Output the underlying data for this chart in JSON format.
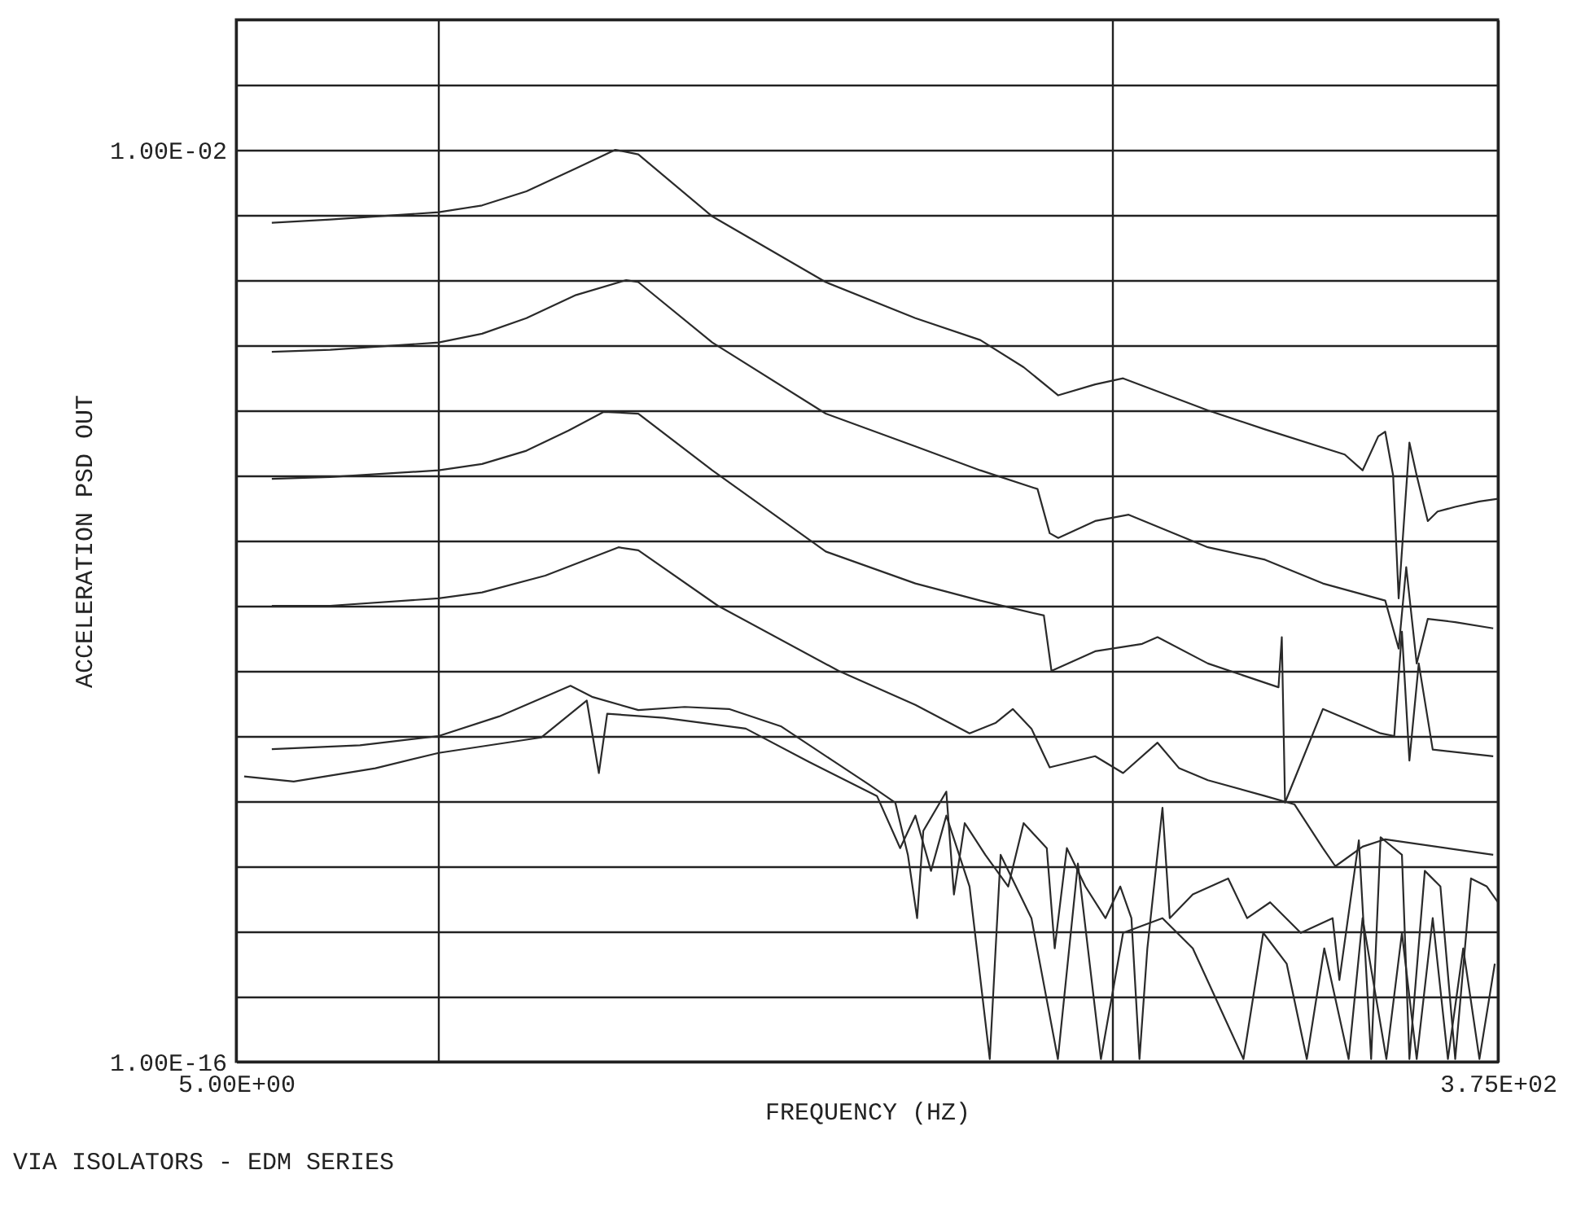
{
  "chart_data": {
    "type": "line",
    "xlabel": "FREQUENCY (HZ)",
    "ylabel": "ACCELERATION PSD OUT",
    "annotations": [
      "VIA ISOLATORS - EDM SERIES"
    ],
    "log": "xy",
    "grid": true,
    "line_style": "solid",
    "xlim": [
      5,
      375
    ],
    "xticks": [
      {
        "value": 5,
        "label": "5.00E+00"
      },
      {
        "value": 10,
        "label": null
      },
      {
        "value": 100,
        "label": null
      },
      {
        "value": 375,
        "label": "3.75E+02"
      }
    ],
    "ylim": [
      1e-16,
      1
    ],
    "yticks": [
      {
        "value": 1e-16,
        "label": "1.00E-16"
      },
      {
        "value": 1e-15,
        "label": null
      },
      {
        "value": 1e-14,
        "label": null
      },
      {
        "value": 1e-13,
        "label": null
      },
      {
        "value": 1e-12,
        "label": null
      },
      {
        "value": 1e-11,
        "label": null
      },
      {
        "value": 1e-10,
        "label": null
      },
      {
        "value": 1e-09,
        "label": null
      },
      {
        "value": 1e-08,
        "label": null
      },
      {
        "value": 1e-07,
        "label": null
      },
      {
        "value": 1e-06,
        "label": null
      },
      {
        "value": 1e-05,
        "label": null
      },
      {
        "value": 0.0001,
        "label": null
      },
      {
        "value": 0.001,
        "label": null
      },
      {
        "value": 0.01,
        "label": "1.00E-02"
      },
      {
        "value": 0.1,
        "label": null
      },
      {
        "value": 1,
        "label": null
      }
    ],
    "series": [
      {
        "color": "#2a2a2a",
        "x": [
          5.65,
          6.9,
          10,
          11.6,
          13.5,
          16.0,
          18.3,
          19.8,
          25.5,
          37.6,
          51.1,
          63.8,
          74.0,
          83.3,
          94.5,
          104,
          139,
          169,
          222,
          236,
          249,
          255,
          262,
          267,
          277,
          284,
          295,
          305,
          324,
          352,
          375
        ],
        "values": [
          0.00076,
          0.00085,
          0.0011,
          0.0014,
          0.0023,
          0.0052,
          0.01,
          0.0085,
          0.00095,
          9.3e-05,
          2.6e-05,
          1.2e-05,
          4.6e-06,
          1.7e-06,
          2.5e-06,
          3.1e-06,
          1e-06,
          5.1e-07,
          2.1e-07,
          1.2e-07,
          4e-07,
          4.7e-07,
          1e-07,
          1.3e-09,
          3.2e-07,
          1e-07,
          2e-08,
          2.8e-08,
          3.3e-08,
          4e-08,
          4.4e-08
        ]
      },
      {
        "color": "#2a2a2a",
        "x": [
          5.65,
          6.9,
          10,
          11.6,
          13.5,
          16.0,
          19.0,
          19.8,
          25.5,
          37.6,
          51.1,
          63.8,
          77.6,
          80.9,
          83.3,
          94.5,
          106,
          139,
          169,
          206,
          255,
          267,
          274,
          284,
          295,
          324,
          369
        ],
        "values": [
          7.9e-06,
          8.5e-06,
          1.1e-05,
          1.5e-05,
          2.6e-05,
          5.9e-05,
          0.0001,
          9.3e-05,
          1.1e-05,
          8.9e-07,
          2.8e-07,
          1.2e-07,
          6.2e-08,
          1.3e-08,
          1.1e-08,
          2e-08,
          2.5e-08,
          7.9e-09,
          5.1e-09,
          2.2e-09,
          1.2e-09,
          2.2e-10,
          3.9e-09,
          1.3e-10,
          6.3e-10,
          5.6e-10,
          4.5e-10
        ]
      },
      {
        "color": "#2a2a2a",
        "x": [
          5.65,
          6.9,
          10,
          11.6,
          13.5,
          15.6,
          17.6,
          19.8,
          25.5,
          37.6,
          51.1,
          63.8,
          79.3,
          81.4,
          94.5,
          111,
          117,
          139,
          177,
          179,
          181,
          206,
          251,
          263,
          270,
          277,
          286,
          300,
          369
        ],
        "values": [
          8.9e-08,
          9.5e-08,
          1.2e-07,
          1.5e-07,
          2.4e-07,
          4.9e-07,
          9.5e-07,
          8.9e-07,
          1.2e-07,
          6.8e-09,
          2.2e-09,
          1.2e-09,
          7.1e-10,
          1e-10,
          2e-10,
          2.6e-10,
          3.3e-10,
          1.3e-10,
          5.6e-11,
          3.3e-10,
          9.5e-13,
          2.6e-11,
          1.1e-11,
          1e-11,
          4e-10,
          4.2e-12,
          1.3e-10,
          6.2e-12,
          4.9e-12
        ]
      },
      {
        "color": "#2a2a2a",
        "x": [
          5.65,
          6.9,
          10,
          11.6,
          14.4,
          18.5,
          19.8,
          26.0,
          39.3,
          51.1,
          61.5,
          67.3,
          71.3,
          76.0,
          80.9,
          94.5,
          104,
          117,
          126,
          139,
          169,
          187,
          206,
          215,
          236,
          255,
          369
        ],
        "values": [
          1e-09,
          1e-09,
          1.3e-09,
          1.6e-09,
          2.9e-09,
          7.9e-09,
          7.1e-09,
          1e-09,
          1e-10,
          3e-11,
          1.1e-11,
          1.6e-11,
          2.6e-11,
          1.3e-11,
          3.3e-12,
          4.9e-12,
          2.7e-12,
          7.9e-12,
          3.2e-12,
          2.1e-12,
          1.2e-12,
          8.9e-13,
          1.9e-13,
          1e-13,
          2e-13,
          2.6e-13,
          1.5e-13
        ]
      },
      {
        "color": "#2a2a2a",
        "x": [
          5.65,
          7.64,
          10,
          12.3,
          15.7,
          16.9,
          19.8,
          23.2,
          27.0,
          32.3,
          38.5,
          43.6,
          47.7,
          49.8,
          51.4,
          52.5,
          56.8,
          58.3,
          60.5,
          64.9,
          70.2,
          74.0,
          80.1,
          82.3,
          85.8,
          91.4,
          97.9,
          103,
          107,
          110,
          113,
          119,
          122,
          132,
          149,
          159,
          172,
          191,
          213,
          218,
          233,
          243,
          251,
          270,
          277,
          292,
          308,
          324,
          342,
          361,
          375
        ],
        "values": [
          6.3e-12,
          7.2e-12,
          1e-11,
          2e-11,
          5.9e-11,
          4e-11,
          2.5e-11,
          2.8e-11,
          2.6e-11,
          1.4e-11,
          4.2e-12,
          1.8e-12,
          9.5e-13,
          1.5e-13,
          1.6e-14,
          3.5e-13,
          1.4e-12,
          3.7e-14,
          4.6e-13,
          1.5e-13,
          4.9e-14,
          4.6e-13,
          1.9e-13,
          5.5e-15,
          1.9e-13,
          4.9e-14,
          1.6e-14,
          4.9e-14,
          1.6e-14,
          1.1e-16,
          5.5e-15,
          7.9e-13,
          1.6e-14,
          3.7e-14,
          6.5e-14,
          1.6e-14,
          2.8e-14,
          9.5e-15,
          1.6e-14,
          1.8e-15,
          2.5e-13,
          1.1e-16,
          2.8e-13,
          1.5e-13,
          1.1e-16,
          8.5e-14,
          4.9e-14,
          1.1e-16,
          6.5e-14,
          4.9e-14,
          2.8e-14
        ]
      },
      {
        "color": "#2a2a2a",
        "x": [
          5.14,
          6.09,
          8.05,
          10,
          14.2,
          16.6,
          17.3,
          17.8,
          21.6,
          28.6,
          35.5,
          44.8,
          48.5,
          51.1,
          53.9,
          56.8,
          61.5,
          65.9,
          68.4,
          76.0,
          83.2,
          89.1,
          96.4,
          104,
          119,
          132,
          157,
          168,
          182,
          195,
          207,
          225,
          236,
          256,
          270,
          284,
          300,
          316,
          333,
          352,
          371
        ],
        "values": [
          2.4e-12,
          2e-12,
          3.2e-12,
          5.5e-12,
          9.5e-12,
          3.5e-11,
          2.7e-12,
          2.2e-11,
          1.9e-11,
          1.3e-11,
          4e-12,
          1.2e-12,
          1.9e-13,
          6e-13,
          8.5e-14,
          6e-13,
          4.9e-14,
          1.1e-16,
          1.5e-13,
          1.6e-14,
          1.1e-16,
          1.1e-13,
          1.1e-16,
          9.5e-15,
          1.6e-14,
          5.5e-15,
          1.1e-16,
          9.5e-15,
          3.2e-15,
          1.1e-16,
          5.5e-15,
          1.1e-16,
          1.6e-14,
          1.1e-16,
          9.5e-15,
          1.1e-16,
          1.6e-14,
          1.1e-16,
          5.5e-15,
          1.1e-16,
          3.2e-15
        ]
      }
    ]
  }
}
